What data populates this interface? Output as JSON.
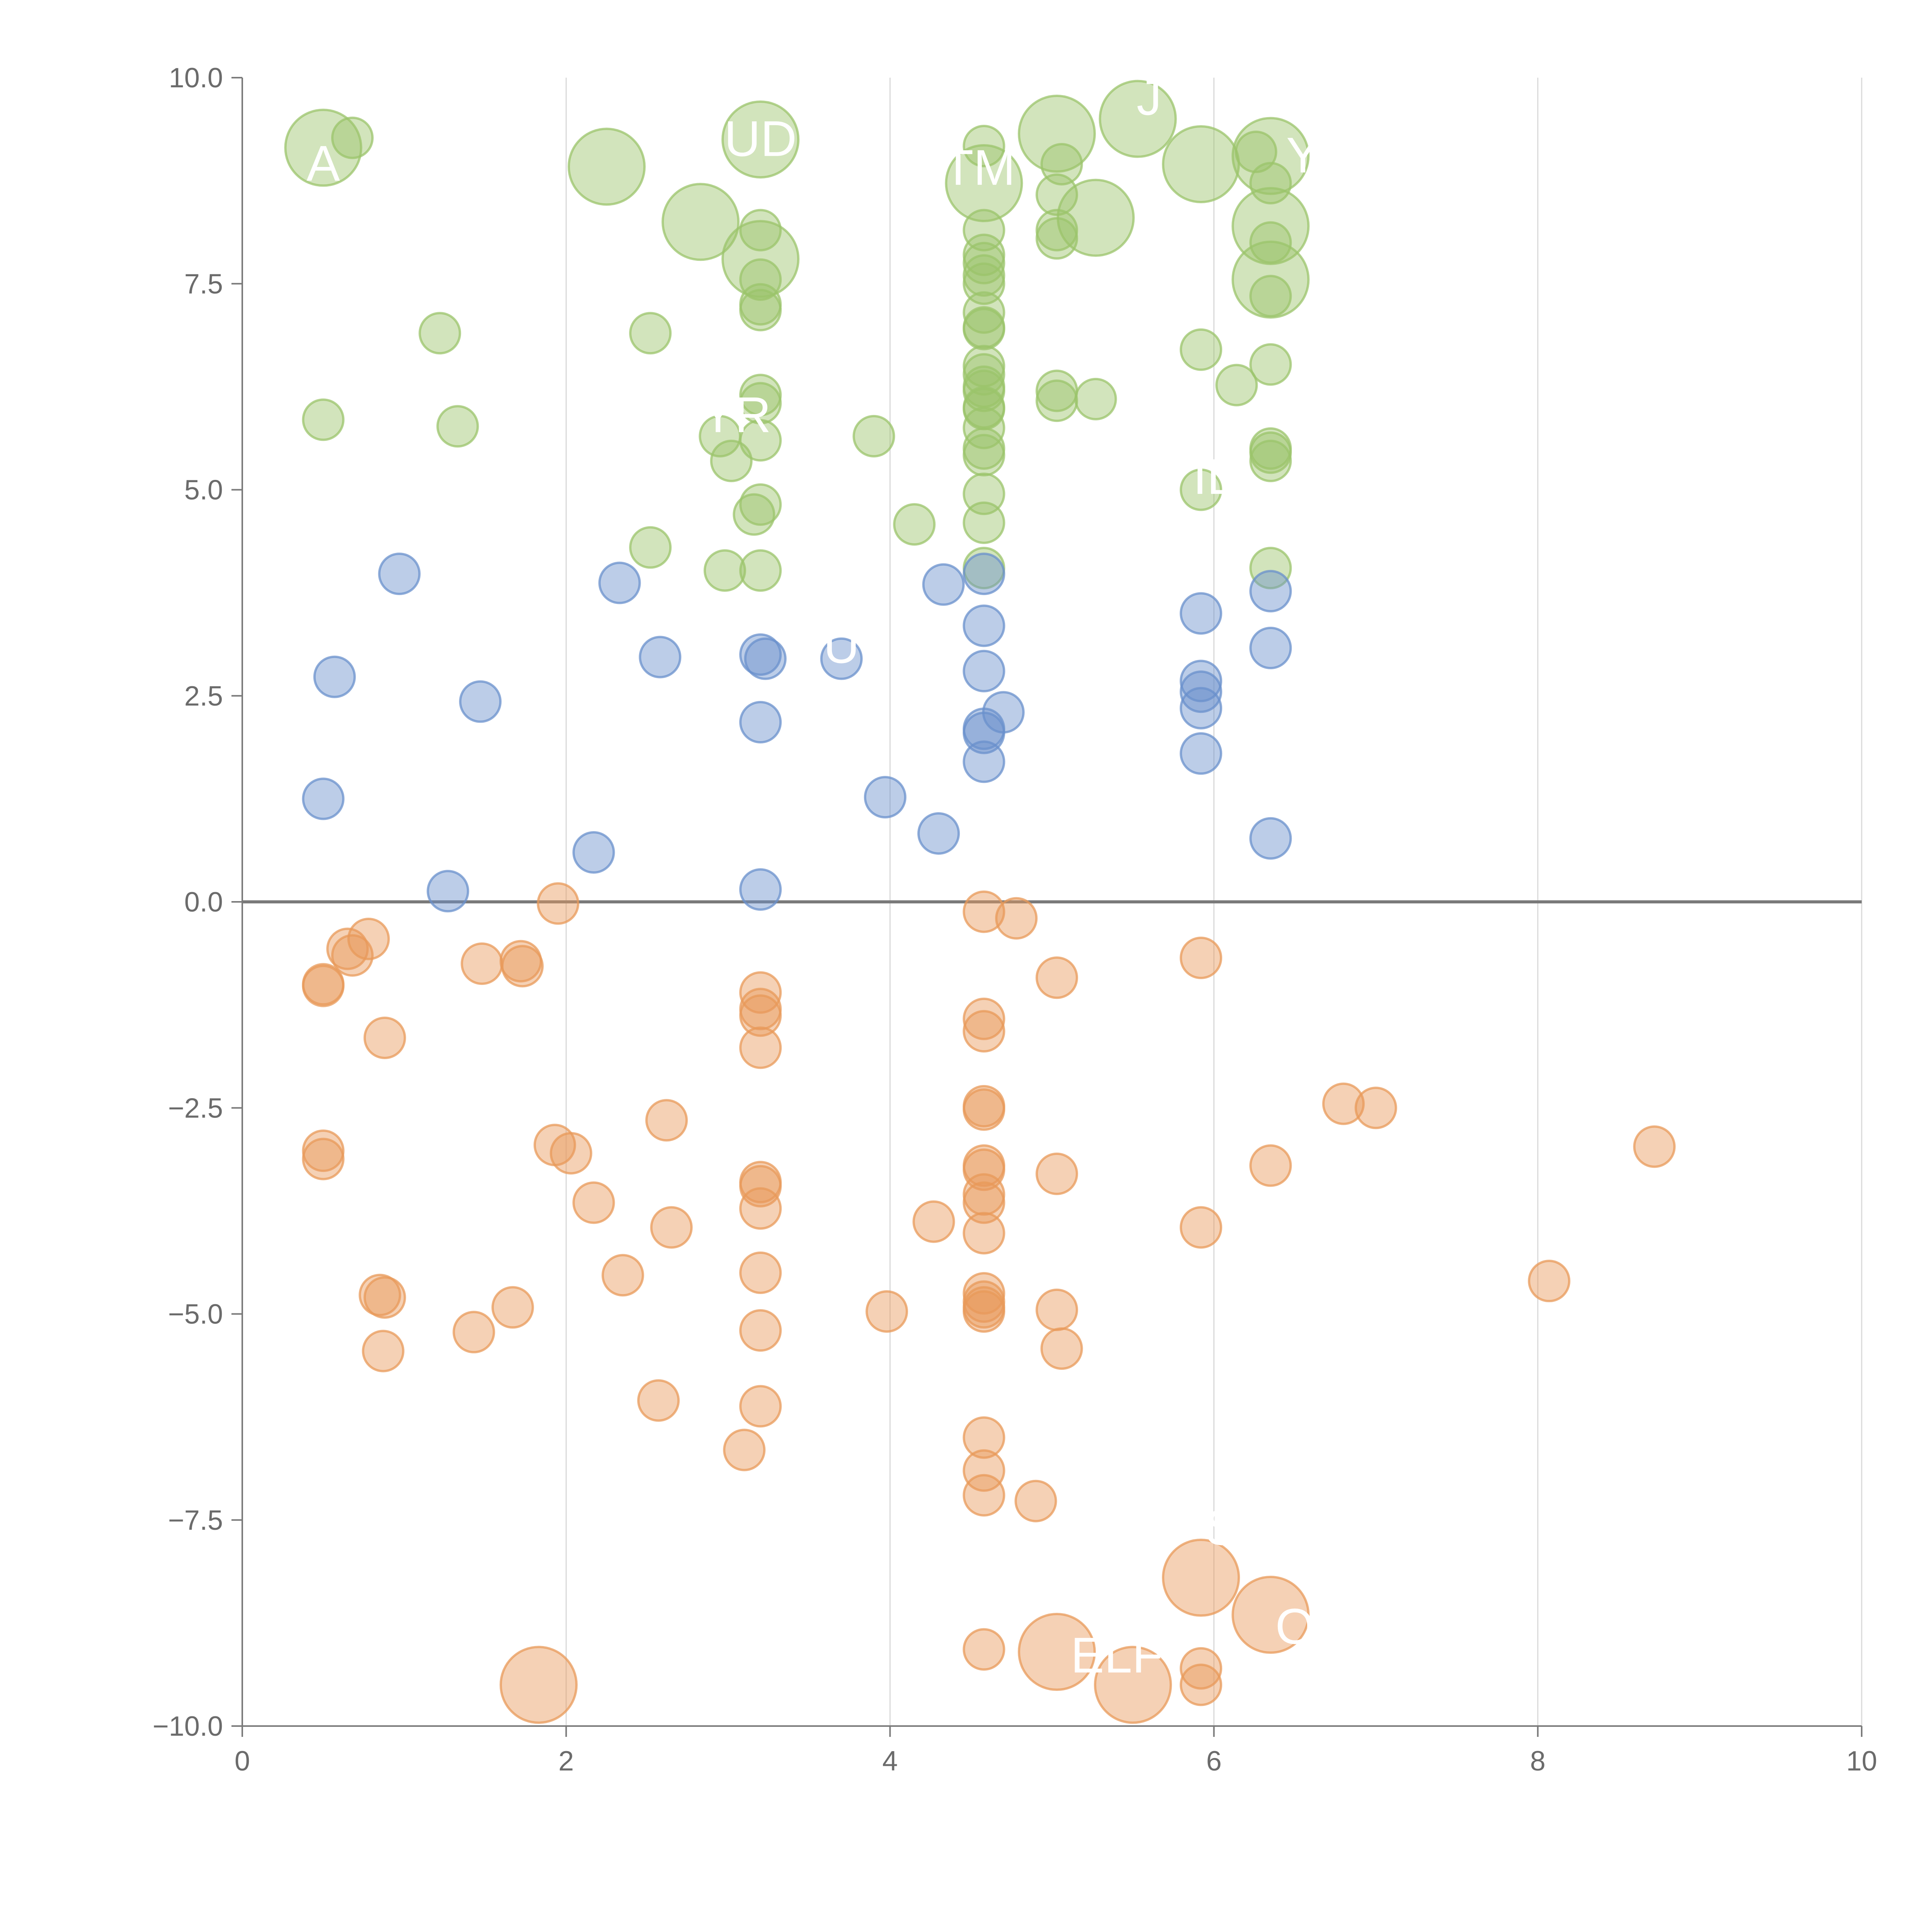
{
  "chart_data": {
    "type": "scatter",
    "title": "",
    "xlabel": "",
    "ylabel": "",
    "xlim": [
      0,
      10
    ],
    "ylim": [
      -10,
      10
    ],
    "grid": "vertical",
    "x_ticks": [
      "0",
      "2",
      "4",
      "6",
      "8",
      "10"
    ],
    "x_tick_values": [
      0,
      2,
      4,
      6,
      8,
      10
    ],
    "y_ticks": [
      "10.0",
      "7.5",
      "5.0",
      "2.5",
      "0.0",
      "−2.5",
      "−5.0",
      "−7.5",
      "−10.0"
    ],
    "y_tick_values": [
      10,
      7.5,
      5,
      2.5,
      0,
      -2.5,
      -5,
      -7.5,
      -10
    ],
    "colors": {
      "high": "#9bc46b",
      "mid": "#6a90cc",
      "low": "#e89a5a",
      "axis": "#7a7a7a",
      "grid": "#d9d9d9",
      "label": "#ffffff"
    },
    "series": [
      {
        "name": "high",
        "points": [
          [
            0.5,
            9.15,
            3
          ],
          [
            0.68,
            9.27,
            1
          ],
          [
            2.25,
            8.92,
            3
          ],
          [
            3.2,
            9.25,
            3
          ],
          [
            2.83,
            8.25,
            3
          ],
          [
            3.2,
            7.8,
            3
          ],
          [
            3.2,
            8.15,
            1
          ],
          [
            3.2,
            7.55,
            1
          ],
          [
            3.2,
            7.25,
            1
          ],
          [
            3.2,
            7.18,
            1
          ],
          [
            1.22,
            6.9,
            1
          ],
          [
            2.52,
            6.9,
            1
          ],
          [
            0.5,
            5.85,
            1
          ],
          [
            1.33,
            5.77,
            1
          ],
          [
            3.2,
            6.15,
            1
          ],
          [
            3.2,
            6.05,
            1
          ],
          [
            2.95,
            5.65,
            1
          ],
          [
            3.02,
            5.35,
            1
          ],
          [
            3.2,
            5.6,
            1
          ],
          [
            3.2,
            4.82,
            1
          ],
          [
            3.16,
            4.7,
            1
          ],
          [
            2.52,
            4.3,
            1
          ],
          [
            2.98,
            4.02,
            1
          ],
          [
            3.2,
            4.02,
            1
          ],
          [
            3.9,
            5.65,
            1
          ],
          [
            4.15,
            4.58,
            1
          ],
          [
            4.58,
            9.17,
            1
          ],
          [
            4.58,
            8.72,
            3
          ],
          [
            4.58,
            8.15,
            1
          ],
          [
            4.58,
            7.85,
            1
          ],
          [
            4.58,
            7.75,
            1
          ],
          [
            4.58,
            7.6,
            1
          ],
          [
            4.58,
            7.5,
            1
          ],
          [
            4.58,
            7.15,
            1
          ],
          [
            4.58,
            6.97,
            1
          ],
          [
            4.58,
            6.95,
            1
          ],
          [
            4.58,
            6.5,
            1
          ],
          [
            4.58,
            6.4,
            1
          ],
          [
            4.58,
            6.25,
            1
          ],
          [
            4.58,
            6.2,
            1
          ],
          [
            4.58,
            6.0,
            1
          ],
          [
            4.58,
            5.98,
            1
          ],
          [
            4.58,
            5.75,
            1
          ],
          [
            4.58,
            5.5,
            1
          ],
          [
            4.58,
            5.42,
            1
          ],
          [
            4.58,
            4.95,
            1
          ],
          [
            4.58,
            4.6,
            1
          ],
          [
            4.58,
            4.05,
            1
          ],
          [
            5.03,
            9.32,
            3
          ],
          [
            5.53,
            9.5,
            3
          ],
          [
            5.06,
            8.95,
            1
          ],
          [
            5.03,
            8.58,
            1
          ],
          [
            5.27,
            8.3,
            3
          ],
          [
            5.03,
            8.15,
            1
          ],
          [
            5.03,
            8.05,
            1
          ],
          [
            5.03,
            6.2,
            1
          ],
          [
            5.03,
            6.08,
            1
          ],
          [
            5.27,
            6.1,
            1
          ],
          [
            5.92,
            8.95,
            3
          ],
          [
            5.92,
            6.7,
            1
          ],
          [
            6.14,
            6.27,
            1
          ],
          [
            5.92,
            5.0,
            1
          ],
          [
            6.26,
            9.1,
            1
          ],
          [
            6.35,
            9.05,
            3
          ],
          [
            6.35,
            8.72,
            1
          ],
          [
            6.35,
            8.2,
            3
          ],
          [
            6.35,
            8.0,
            1
          ],
          [
            6.35,
            7.55,
            3
          ],
          [
            6.35,
            7.35,
            1
          ],
          [
            6.35,
            6.52,
            1
          ],
          [
            6.35,
            5.5,
            1
          ],
          [
            6.35,
            5.45,
            1
          ],
          [
            6.35,
            5.35,
            1
          ],
          [
            6.35,
            4.05,
            1
          ]
        ]
      },
      {
        "name": "mid",
        "points": [
          [
            0.97,
            3.98,
            1
          ],
          [
            2.33,
            3.87,
            1
          ],
          [
            0.57,
            2.73,
            1
          ],
          [
            1.47,
            2.43,
            1
          ],
          [
            2.58,
            2.97,
            1
          ],
          [
            3.2,
            3.0,
            1
          ],
          [
            3.23,
            2.95,
            1
          ],
          [
            3.2,
            2.18,
            1
          ],
          [
            3.7,
            2.95,
            1
          ],
          [
            0.5,
            1.25,
            1
          ],
          [
            2.17,
            0.6,
            1
          ],
          [
            1.27,
            0.13,
            1
          ],
          [
            3.2,
            0.15,
            1
          ],
          [
            3.97,
            1.27,
            1
          ],
          [
            4.3,
            0.83,
            1
          ],
          [
            4.33,
            3.85,
            1
          ],
          [
            4.58,
            3.98,
            1
          ],
          [
            4.58,
            3.35,
            1
          ],
          [
            4.58,
            2.8,
            1
          ],
          [
            4.7,
            2.3,
            1
          ],
          [
            4.58,
            2.1,
            1
          ],
          [
            4.58,
            2.05,
            1
          ],
          [
            4.58,
            1.7,
            1
          ],
          [
            5.92,
            3.5,
            1
          ],
          [
            5.92,
            2.68,
            1
          ],
          [
            5.92,
            2.55,
            1
          ],
          [
            5.92,
            2.35,
            1
          ],
          [
            5.92,
            1.8,
            1
          ],
          [
            6.35,
            3.77,
            1
          ],
          [
            6.35,
            3.08,
            1
          ],
          [
            6.35,
            0.77,
            1
          ]
        ]
      },
      {
        "name": "low",
        "points": [
          [
            1.95,
            -0.02,
            1
          ],
          [
            0.65,
            -0.57,
            1
          ],
          [
            0.68,
            -0.65,
            1
          ],
          [
            0.78,
            -0.45,
            1
          ],
          [
            1.48,
            -0.75,
            1
          ],
          [
            1.72,
            -0.72,
            1
          ],
          [
            1.73,
            -0.78,
            1
          ],
          [
            0.5,
            -1.02,
            1
          ],
          [
            0.5,
            -1.0,
            1
          ],
          [
            0.88,
            -1.65,
            1
          ],
          [
            3.2,
            -1.1,
            1
          ],
          [
            3.2,
            -1.3,
            1
          ],
          [
            3.2,
            -1.38,
            1
          ],
          [
            3.2,
            -1.77,
            1
          ],
          [
            0.5,
            -3.02,
            1
          ],
          [
            0.5,
            -3.12,
            1
          ],
          [
            1.93,
            -2.95,
            1
          ],
          [
            2.03,
            -3.05,
            1
          ],
          [
            2.62,
            -2.65,
            1
          ],
          [
            2.17,
            -3.65,
            1
          ],
          [
            2.65,
            -3.95,
            1
          ],
          [
            3.2,
            -3.4,
            1
          ],
          [
            3.2,
            -3.45,
            1
          ],
          [
            3.2,
            -3.72,
            1
          ],
          [
            3.2,
            -4.5,
            1
          ],
          [
            2.35,
            -4.53,
            1
          ],
          [
            0.85,
            -4.77,
            1
          ],
          [
            0.88,
            -4.8,
            1
          ],
          [
            1.67,
            -4.92,
            1
          ],
          [
            0.87,
            -5.45,
            1
          ],
          [
            1.43,
            -5.22,
            1
          ],
          [
            3.2,
            -5.2,
            1
          ],
          [
            2.57,
            -6.05,
            1
          ],
          [
            3.2,
            -6.12,
            1
          ],
          [
            3.1,
            -6.65,
            1
          ],
          [
            1.83,
            -9.5,
            3
          ],
          [
            4.58,
            -0.12,
            1
          ],
          [
            4.78,
            -0.2,
            1
          ],
          [
            4.58,
            -1.42,
            1
          ],
          [
            4.58,
            -1.57,
            1
          ],
          [
            4.58,
            -2.48,
            1
          ],
          [
            4.58,
            -2.52,
            1
          ],
          [
            4.58,
            -3.2,
            1
          ],
          [
            4.58,
            -3.25,
            1
          ],
          [
            4.58,
            -3.55,
            1
          ],
          [
            4.58,
            -3.65,
            1
          ],
          [
            4.58,
            -4.02,
            1
          ],
          [
            4.27,
            -3.88,
            1
          ],
          [
            3.98,
            -4.97,
            1
          ],
          [
            4.58,
            -4.75,
            1
          ],
          [
            4.58,
            -4.85,
            1
          ],
          [
            4.58,
            -4.92,
            1
          ],
          [
            4.58,
            -4.97,
            1
          ],
          [
            4.58,
            -6.5,
            1
          ],
          [
            4.58,
            -6.9,
            1
          ],
          [
            4.58,
            -7.2,
            1
          ],
          [
            4.9,
            -7.27,
            1
          ],
          [
            4.58,
            -9.07,
            1
          ],
          [
            5.03,
            -0.92,
            1
          ],
          [
            5.03,
            -3.3,
            1
          ],
          [
            5.03,
            -4.95,
            1
          ],
          [
            5.06,
            -5.42,
            1
          ],
          [
            5.03,
            -9.1,
            3
          ],
          [
            5.5,
            -9.5,
            3
          ],
          [
            5.92,
            -0.68,
            1
          ],
          [
            5.92,
            -3.95,
            1
          ],
          [
            5.92,
            -8.2,
            3
          ],
          [
            5.92,
            -9.3,
            1
          ],
          [
            5.92,
            -9.5,
            1
          ],
          [
            6.35,
            -3.2,
            1
          ],
          [
            6.35,
            -8.65,
            3
          ],
          [
            6.8,
            -2.45,
            1
          ],
          [
            7.0,
            -2.5,
            1
          ],
          [
            8.07,
            -4.6,
            1
          ],
          [
            8.72,
            -2.97,
            1
          ]
        ]
      }
    ],
    "labels": [
      {
        "text": "A",
        "x": 0.5,
        "y": 8.75
      },
      {
        "text": "UD",
        "x": 3.2,
        "y": 9.05
      },
      {
        "text": "TM",
        "x": 4.55,
        "y": 8.7
      },
      {
        "text": "J",
        "x": 5.6,
        "y": 9.55
      },
      {
        "text": "Y",
        "x": 6.55,
        "y": 8.85
      },
      {
        "text": "YR",
        "x": 3.05,
        "y": 5.7
      },
      {
        "text": "IL",
        "x": 6.0,
        "y": 4.95
      },
      {
        "text": "U",
        "x": 3.7,
        "y": 2.9
      },
      {
        "text": "S",
        "x": 6.05,
        "y": -7.8
      },
      {
        "text": "O",
        "x": 6.5,
        "y": -9.0
      },
      {
        "text": "ELF",
        "x": 5.4,
        "y": -9.35
      }
    ]
  }
}
